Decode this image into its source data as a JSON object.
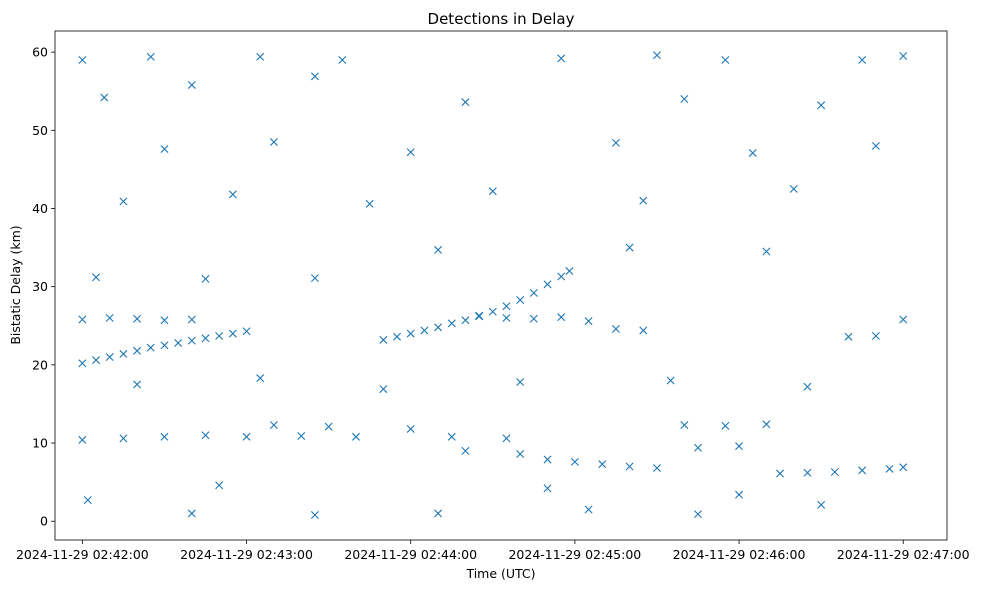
{
  "chart_data": {
    "type": "scatter",
    "title": "Detections in Delay",
    "xlabel": "Time (UTC)",
    "ylabel": "Bistatic Delay (km)",
    "x_unit": "UTC datetime",
    "xlim": [
      "2024-11-29 02:41:50",
      "2024-11-29 02:47:16"
    ],
    "ylim": [
      -2.4,
      62.7
    ],
    "x_ticks": [
      "2024-11-29 02:42:00",
      "2024-11-29 02:43:00",
      "2024-11-29 02:44:00",
      "2024-11-29 02:45:00",
      "2024-11-29 02:46:00",
      "2024-11-29 02:47:00"
    ],
    "y_ticks": [
      0,
      10,
      20,
      30,
      40,
      50,
      60
    ],
    "marker": "x",
    "color": "#1f77b4",
    "grid": false,
    "legend": "none",
    "series": [
      {
        "points": [
          {
            "x": "2024-11-29 02:42:00",
            "y": 20.2
          },
          {
            "x": "2024-11-29 02:42:05",
            "y": 20.6
          },
          {
            "x": "2024-11-29 02:42:10",
            "y": 21.0
          },
          {
            "x": "2024-11-29 02:42:15",
            "y": 21.4
          },
          {
            "x": "2024-11-29 02:42:20",
            "y": 21.8
          },
          {
            "x": "2024-11-29 02:42:25",
            "y": 22.2
          },
          {
            "x": "2024-11-29 02:42:30",
            "y": 22.5
          },
          {
            "x": "2024-11-29 02:42:35",
            "y": 22.8
          },
          {
            "x": "2024-11-29 02:42:40",
            "y": 23.1
          },
          {
            "x": "2024-11-29 02:42:45",
            "y": 23.4
          },
          {
            "x": "2024-11-29 02:42:50",
            "y": 23.7
          },
          {
            "x": "2024-11-29 02:42:55",
            "y": 24.0
          },
          {
            "x": "2024-11-29 02:43:00",
            "y": 24.3
          },
          {
            "x": "2024-11-29 02:43:50",
            "y": 23.2
          },
          {
            "x": "2024-11-29 02:43:55",
            "y": 23.6
          },
          {
            "x": "2024-11-29 02:44:00",
            "y": 24.0
          },
          {
            "x": "2024-11-29 02:44:05",
            "y": 24.4
          },
          {
            "x": "2024-11-29 02:44:10",
            "y": 24.8
          },
          {
            "x": "2024-11-29 02:44:15",
            "y": 25.3
          },
          {
            "x": "2024-11-29 02:44:20",
            "y": 25.7
          },
          {
            "x": "2024-11-29 02:44:25",
            "y": 26.2
          },
          {
            "x": "2024-11-29 02:44:30",
            "y": 26.8
          },
          {
            "x": "2024-11-29 02:44:35",
            "y": 27.5
          },
          {
            "x": "2024-11-29 02:44:40",
            "y": 28.3
          },
          {
            "x": "2024-11-29 02:44:45",
            "y": 29.2
          },
          {
            "x": "2024-11-29 02:44:50",
            "y": 30.3
          },
          {
            "x": "2024-11-29 02:44:55",
            "y": 31.3
          },
          {
            "x": "2024-11-29 02:44:58",
            "y": 32.0
          },
          {
            "x": "2024-11-29 02:42:00",
            "y": 25.8
          },
          {
            "x": "2024-11-29 02:42:10",
            "y": 26.0
          },
          {
            "x": "2024-11-29 02:42:20",
            "y": 25.9
          },
          {
            "x": "2024-11-29 02:42:30",
            "y": 25.7
          },
          {
            "x": "2024-11-29 02:42:40",
            "y": 25.8
          },
          {
            "x": "2024-11-29 02:44:25",
            "y": 26.3
          },
          {
            "x": "2024-11-29 02:44:35",
            "y": 26.0
          },
          {
            "x": "2024-11-29 02:44:45",
            "y": 25.9
          },
          {
            "x": "2024-11-29 02:44:55",
            "y": 26.1
          },
          {
            "x": "2024-11-29 02:45:05",
            "y": 25.6
          },
          {
            "x": "2024-11-29 02:45:15",
            "y": 24.6
          },
          {
            "x": "2024-11-29 02:45:25",
            "y": 24.4
          },
          {
            "x": "2024-11-29 02:46:40",
            "y": 23.6
          },
          {
            "x": "2024-11-29 02:46:50",
            "y": 23.7
          },
          {
            "x": "2024-11-29 02:47:00",
            "y": 25.8
          },
          {
            "x": "2024-11-29 02:42:00",
            "y": 10.4
          },
          {
            "x": "2024-11-29 02:42:15",
            "y": 10.6
          },
          {
            "x": "2024-11-29 02:42:30",
            "y": 10.8
          },
          {
            "x": "2024-11-29 02:42:45",
            "y": 11.0
          },
          {
            "x": "2024-11-29 02:43:00",
            "y": 10.8
          },
          {
            "x": "2024-11-29 02:43:20",
            "y": 10.9
          },
          {
            "x": "2024-11-29 02:43:40",
            "y": 10.8
          },
          {
            "x": "2024-11-29 02:44:15",
            "y": 10.8
          },
          {
            "x": "2024-11-29 02:44:35",
            "y": 10.6
          },
          {
            "x": "2024-11-29 02:43:10",
            "y": 12.3
          },
          {
            "x": "2024-11-29 02:43:30",
            "y": 12.1
          },
          {
            "x": "2024-11-29 02:44:00",
            "y": 11.8
          },
          {
            "x": "2024-11-29 02:44:20",
            "y": 9.0
          },
          {
            "x": "2024-11-29 02:44:40",
            "y": 8.6
          },
          {
            "x": "2024-11-29 02:44:50",
            "y": 7.9
          },
          {
            "x": "2024-11-29 02:45:00",
            "y": 7.6
          },
          {
            "x": "2024-11-29 02:45:10",
            "y": 7.3
          },
          {
            "x": "2024-11-29 02:45:20",
            "y": 7.0
          },
          {
            "x": "2024-11-29 02:45:30",
            "y": 6.8
          },
          {
            "x": "2024-11-29 02:45:40",
            "y": 12.3
          },
          {
            "x": "2024-11-29 02:45:55",
            "y": 12.2
          },
          {
            "x": "2024-11-29 02:46:10",
            "y": 12.4
          },
          {
            "x": "2024-11-29 02:45:45",
            "y": 9.4
          },
          {
            "x": "2024-11-29 02:46:00",
            "y": 9.6
          },
          {
            "x": "2024-11-29 02:46:15",
            "y": 6.1
          },
          {
            "x": "2024-11-29 02:46:25",
            "y": 6.2
          },
          {
            "x": "2024-11-29 02:46:35",
            "y": 6.3
          },
          {
            "x": "2024-11-29 02:46:45",
            "y": 6.5
          },
          {
            "x": "2024-11-29 02:46:55",
            "y": 6.7
          },
          {
            "x": "2024-11-29 02:47:00",
            "y": 6.9
          },
          {
            "x": "2024-11-29 02:42:00",
            "y": 59.0
          },
          {
            "x": "2024-11-29 02:42:25",
            "y": 59.4
          },
          {
            "x": "2024-11-29 02:43:05",
            "y": 59.4
          },
          {
            "x": "2024-11-29 02:43:35",
            "y": 59.0
          },
          {
            "x": "2024-11-29 02:44:55",
            "y": 59.2
          },
          {
            "x": "2024-11-29 02:45:30",
            "y": 59.6
          },
          {
            "x": "2024-11-29 02:45:55",
            "y": 59.0
          },
          {
            "x": "2024-11-29 02:46:45",
            "y": 59.0
          },
          {
            "x": "2024-11-29 02:47:00",
            "y": 59.5
          },
          {
            "x": "2024-11-29 02:42:08",
            "y": 54.2
          },
          {
            "x": "2024-11-29 02:42:40",
            "y": 55.8
          },
          {
            "x": "2024-11-29 02:43:25",
            "y": 56.9
          },
          {
            "x": "2024-11-29 02:44:20",
            "y": 53.6
          },
          {
            "x": "2024-11-29 02:45:40",
            "y": 54.0
          },
          {
            "x": "2024-11-29 02:46:30",
            "y": 53.2
          },
          {
            "x": "2024-11-29 02:42:30",
            "y": 47.6
          },
          {
            "x": "2024-11-29 02:43:10",
            "y": 48.5
          },
          {
            "x": "2024-11-29 02:44:00",
            "y": 47.2
          },
          {
            "x": "2024-11-29 02:45:15",
            "y": 48.4
          },
          {
            "x": "2024-11-29 02:46:05",
            "y": 47.1
          },
          {
            "x": "2024-11-29 02:46:50",
            "y": 48.0
          },
          {
            "x": "2024-11-29 02:42:15",
            "y": 40.9
          },
          {
            "x": "2024-11-29 02:42:55",
            "y": 41.8
          },
          {
            "x": "2024-11-29 02:43:45",
            "y": 40.6
          },
          {
            "x": "2024-11-29 02:44:30",
            "y": 42.2
          },
          {
            "x": "2024-11-29 02:45:25",
            "y": 41.0
          },
          {
            "x": "2024-11-29 02:46:20",
            "y": 42.5
          },
          {
            "x": "2024-11-29 02:42:05",
            "y": 31.2
          },
          {
            "x": "2024-11-29 02:42:45",
            "y": 31.0
          },
          {
            "x": "2024-11-29 02:43:25",
            "y": 31.1
          },
          {
            "x": "2024-11-29 02:44:10",
            "y": 34.7
          },
          {
            "x": "2024-11-29 02:45:20",
            "y": 35.0
          },
          {
            "x": "2024-11-29 02:46:10",
            "y": 34.5
          },
          {
            "x": "2024-11-29 02:42:20",
            "y": 17.5
          },
          {
            "x": "2024-11-29 02:43:05",
            "y": 18.3
          },
          {
            "x": "2024-11-29 02:43:50",
            "y": 16.9
          },
          {
            "x": "2024-11-29 02:44:40",
            "y": 17.8
          },
          {
            "x": "2024-11-29 02:45:35",
            "y": 18.0
          },
          {
            "x": "2024-11-29 02:46:25",
            "y": 17.2
          },
          {
            "x": "2024-11-29 02:42:02",
            "y": 2.7
          },
          {
            "x": "2024-11-29 02:42:40",
            "y": 1.0
          },
          {
            "x": "2024-11-29 02:43:25",
            "y": 0.8
          },
          {
            "x": "2024-11-29 02:44:10",
            "y": 1.0
          },
          {
            "x": "2024-11-29 02:45:05",
            "y": 1.5
          },
          {
            "x": "2024-11-29 02:45:45",
            "y": 0.9
          },
          {
            "x": "2024-11-29 02:46:30",
            "y": 2.1
          },
          {
            "x": "2024-11-29 02:42:50",
            "y": 4.6
          },
          {
            "x": "2024-11-29 02:44:50",
            "y": 4.2
          },
          {
            "x": "2024-11-29 02:46:00",
            "y": 3.4
          }
        ]
      }
    ]
  }
}
